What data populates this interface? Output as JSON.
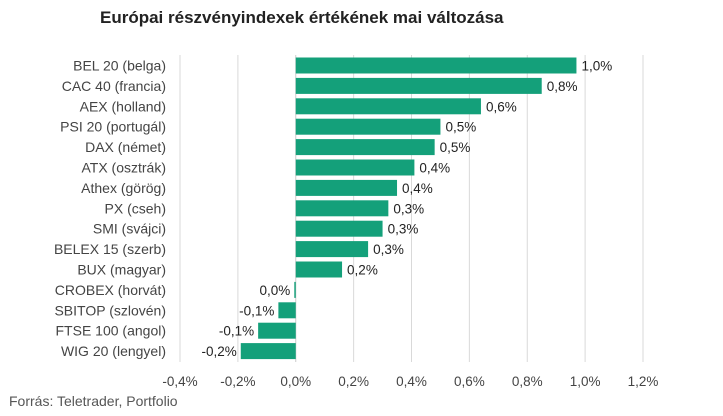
{
  "chart_data": {
    "type": "bar",
    "orientation": "horizontal",
    "title": "Európai részvényindexek értékének mai változása",
    "source": "Forrás: Teletrader, Portfolio",
    "bar_color": "#14a07a",
    "grid": true,
    "xlim": [
      -0.4,
      1.2
    ],
    "xticks": [
      -0.4,
      -0.2,
      0.0,
      0.2,
      0.4,
      0.6,
      0.8,
      1.0,
      1.2
    ],
    "xtick_labels": [
      "-0,4%",
      "-0,2%",
      "0,0%",
      "0,2%",
      "0,4%",
      "0,6%",
      "0,8%",
      "1,0%",
      "1,2%"
    ],
    "categories": [
      "BEL 20 (belga)",
      "CAC 40 (francia)",
      "AEX (holland)",
      "PSI 20 (portugál)",
      "DAX (német)",
      "ATX (osztrák)",
      "Athex (görög)",
      "PX (cseh)",
      "SMI (svájci)",
      "BELEX 15 (szerb)",
      "BUX (magyar)",
      "CROBEX (horvát)",
      "SBITOP (szlovén)",
      "FTSE 100 (angol)",
      "WIG 20 (lengyel)"
    ],
    "values": [
      0.97,
      0.85,
      0.64,
      0.5,
      0.48,
      0.41,
      0.35,
      0.32,
      0.3,
      0.25,
      0.16,
      -0.005,
      -0.06,
      -0.13,
      -0.19
    ],
    "value_labels": [
      "1,0%",
      "0,8%",
      "0,6%",
      "0,5%",
      "0,5%",
      "0,4%",
      "0,4%",
      "0,3%",
      "0,3%",
      "0,3%",
      "0,2%",
      "0,0%",
      "-0,1%",
      "-0,1%",
      "-0,2%"
    ]
  }
}
